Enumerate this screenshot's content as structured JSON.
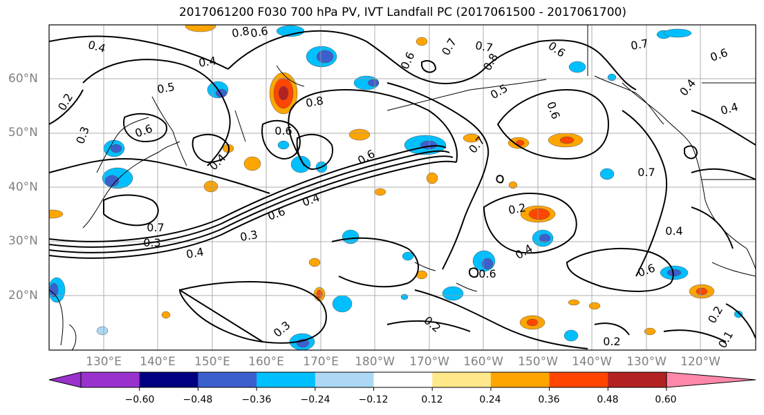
{
  "title": "2017061200 F030 700 hPa PV, IVT Landfall PC (2017061500 - 2017061700)",
  "lat_labels": [
    "60°N",
    "50°N",
    "40°N",
    "30°N",
    "20°N"
  ],
  "lon_labels": [
    "130°E",
    "140°E",
    "150°E",
    "160°E",
    "170°E",
    "180°W",
    "170°W",
    "160°W",
    "150°W",
    "140°W",
    "130°W",
    "120°W"
  ],
  "contour_labels": [
    "0.8",
    "0.6",
    "0.4",
    "0.4",
    "0.5",
    "0.8",
    "0.7",
    "0.6",
    "0.7",
    "0.8",
    "0.6",
    "0.7",
    "0.6",
    "0.4",
    "0.4",
    "0.6",
    "0.2",
    "0.3",
    "0.6",
    "0.4",
    "0.6",
    "0.7",
    "0.6",
    "0.5",
    "0.7",
    "0.4",
    "0.6",
    "0.7",
    "0.3",
    "0.4",
    "0.3",
    "0.2",
    "0.4",
    "0.6",
    "0.6",
    "0.4",
    "0.2",
    "0.2",
    "0.3",
    "0.2",
    "0.1"
  ],
  "colorbar": {
    "tick_labels": [
      "−0.60",
      "−0.48",
      "−0.36",
      "−0.24",
      "−0.12",
      "0.12",
      "0.24",
      "0.36",
      "0.48",
      "0.60"
    ],
    "colors": [
      "#9932cc",
      "#000080",
      "#3b5fcd",
      "#00bfff",
      "#add8f5",
      "#ffffff",
      "#ffe88a",
      "#ffa500",
      "#ff4500",
      "#b22222",
      "#ff88aa"
    ]
  }
}
